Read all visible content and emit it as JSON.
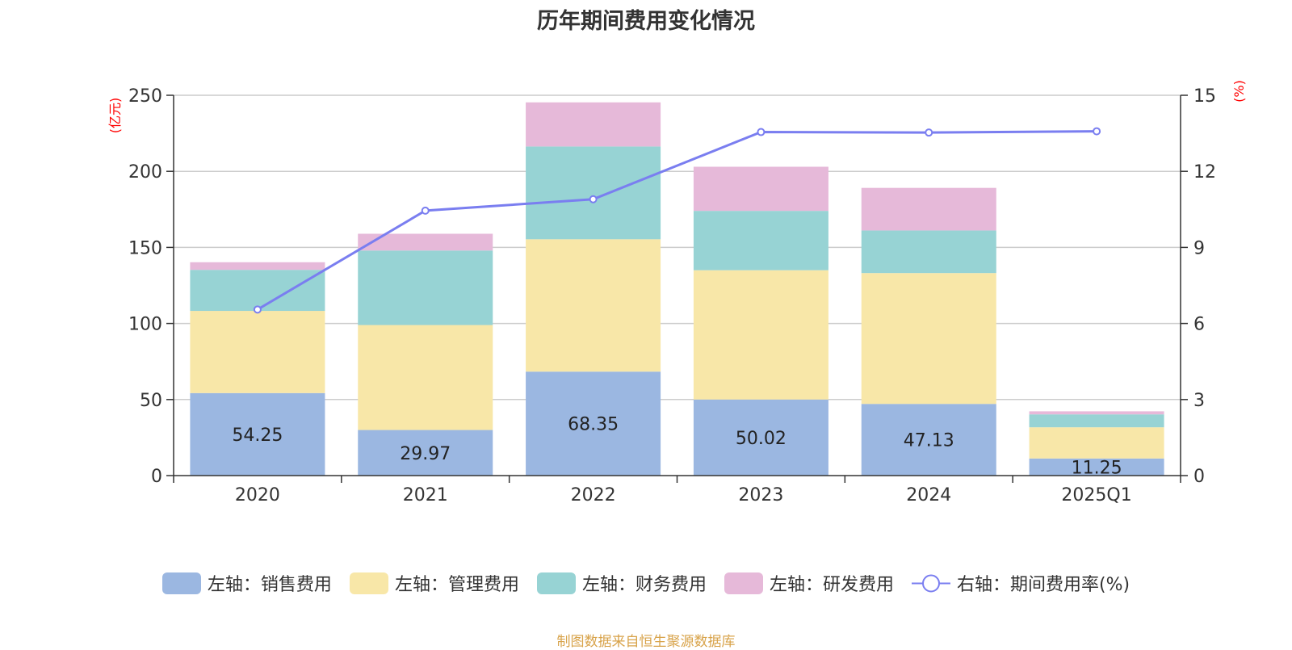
{
  "chart_data": {
    "type": "bar",
    "title": "历年期间费用变化情况",
    "categories": [
      "2020",
      "2021",
      "2022",
      "2023",
      "2024",
      "2025Q1"
    ],
    "left_axis": {
      "unit_label": "(亿元)",
      "ylim": [
        0,
        250
      ],
      "ticks": [
        "0",
        "50",
        "100",
        "150",
        "200",
        "250"
      ]
    },
    "right_axis": {
      "unit_label": "(%)",
      "ylim": [
        0,
        15
      ],
      "ticks": [
        "0",
        "3",
        "6",
        "9",
        "12",
        "15"
      ]
    },
    "series": [
      {
        "name": "左轴：销售费用",
        "type": "bar",
        "axis": "left",
        "stack": true,
        "color": "#9bb7e1",
        "values": [
          54.25,
          29.97,
          68.35,
          50.02,
          47.13,
          11.25
        ],
        "show_labels": true
      },
      {
        "name": "左轴：管理费用",
        "type": "bar",
        "axis": "left",
        "stack": true,
        "color": "#f8e7a8",
        "values": [
          54.0,
          69.0,
          87.0,
          85.0,
          86.0,
          20.5
        ]
      },
      {
        "name": "左轴：财务费用",
        "type": "bar",
        "axis": "left",
        "stack": true,
        "color": "#97d3d4",
        "values": [
          27.0,
          49.0,
          61.0,
          39.0,
          28.0,
          8.5
        ]
      },
      {
        "name": "左轴：研发费用",
        "type": "bar",
        "axis": "left",
        "stack": true,
        "color": "#e6b9d9",
        "values": [
          5.0,
          11.0,
          29.0,
          29.0,
          28.0,
          2.0
        ]
      },
      {
        "name": "右轴：期间费用率(%)",
        "type": "line",
        "axis": "right",
        "color": "#7a7ef0",
        "values": [
          6.55,
          10.45,
          10.9,
          13.55,
          13.53,
          13.58
        ]
      }
    ],
    "grid": true,
    "legend_position": "bottom"
  },
  "source_note": "制图数据来自恒生聚源数据库",
  "colors": {
    "axis_unit": "#ff0000",
    "grid": "#cccccc",
    "text": "#333333"
  }
}
